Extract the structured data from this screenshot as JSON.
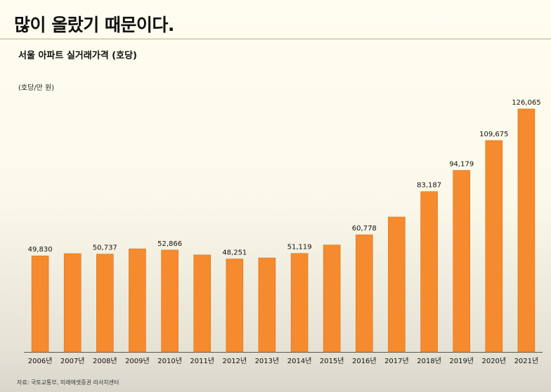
{
  "headline": "많이 올랐기 때문이다.",
  "source": "자료: 국토교통부, 미래에셋증권 리서치센터",
  "chart_data": {
    "type": "bar",
    "title": "서울 아파트 실거래가격 (호당)",
    "ylabel": "(호당/만 원)",
    "xlabel": "",
    "categories": [
      "2006년",
      "2007년",
      "2008년",
      "2009년",
      "2010년",
      "2011년",
      "2012년",
      "2013년",
      "2014년",
      "2015년",
      "2016년",
      "2017년",
      "2018년",
      "2019년",
      "2020년",
      "2021년"
    ],
    "values": [
      49830,
      51000,
      50737,
      53500,
      52866,
      50300,
      48251,
      48800,
      51119,
      55500,
      60778,
      70000,
      83187,
      94179,
      109675,
      126065
    ],
    "labels": [
      "49,830",
      "",
      "50,737",
      "",
      "52,866",
      "",
      "48,251",
      "",
      "51,119",
      "",
      "60,778",
      "",
      "83,187",
      "94,179",
      "109,675",
      "126,065"
    ],
    "ylim": [
      0,
      130000
    ],
    "bar_color": "#f58a2e",
    "grid": false
  }
}
